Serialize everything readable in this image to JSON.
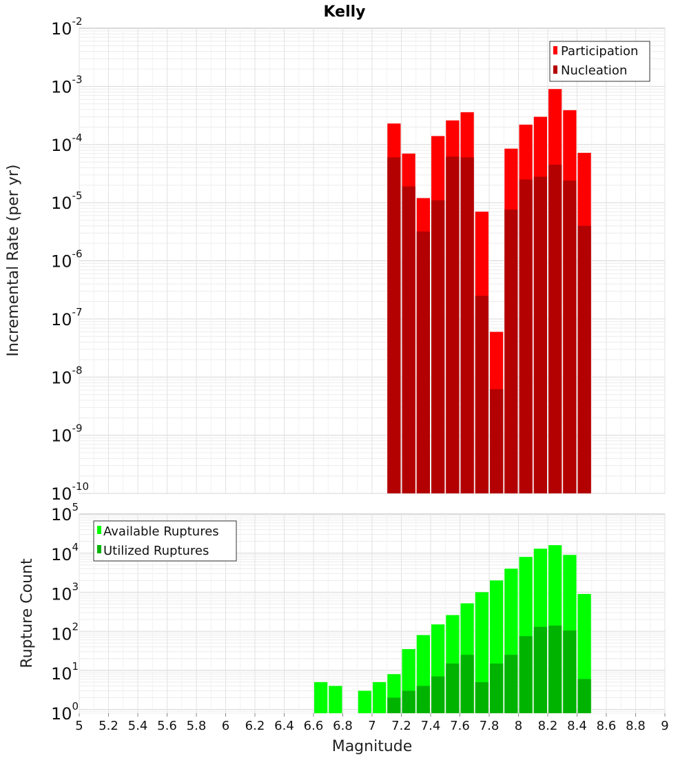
{
  "title": "Kelly",
  "xlabel": "Magnitude",
  "chart_data": [
    {
      "type": "bar",
      "ylabel": "Incremental Rate (per yr)",
      "yscale": "log",
      "ylim": [
        1e-10,
        0.01
      ],
      "xlim": [
        5,
        9
      ],
      "bin_width": 0.1,
      "legend_position": "top-right",
      "grid": true,
      "x": [
        7.15,
        7.25,
        7.35,
        7.45,
        7.55,
        7.65,
        7.75,
        7.85,
        7.95,
        8.05,
        8.15,
        8.25,
        8.35,
        8.45
      ],
      "series": [
        {
          "name": "Participation",
          "color": "#ff0000",
          "values": [
            0.00023,
            7e-05,
            1.2e-05,
            0.00014,
            0.00026,
            0.00036,
            7e-06,
            6e-08,
            8.5e-05,
            0.00022,
            0.0003,
            0.0009,
            0.00039,
            7.2e-05
          ]
        },
        {
          "name": "Nucleation",
          "color": "#b30000",
          "values": [
            6e-05,
            1.9e-05,
            3.2e-06,
            1.1e-05,
            6.2e-05,
            6e-05,
            2.5e-07,
            6.2e-09,
            7.6e-06,
            2.5e-05,
            2.8e-05,
            4.5e-05,
            2.4e-05,
            4e-06
          ]
        }
      ]
    },
    {
      "type": "bar",
      "ylabel": "Rupture Count",
      "yscale": "log",
      "ylim": [
        0.8,
        100000.0
      ],
      "xlim": [
        5,
        9
      ],
      "bin_width": 0.1,
      "legend_position": "top-left",
      "grid": true,
      "x": [
        6.65,
        6.75,
        6.95,
        7.05,
        7.15,
        7.25,
        7.35,
        7.45,
        7.55,
        7.65,
        7.75,
        7.85,
        7.95,
        8.05,
        8.15,
        8.25,
        8.35,
        8.45
      ],
      "series": [
        {
          "name": "Available Ruptures",
          "color": "#00ff00",
          "values": [
            5,
            4,
            3,
            5,
            8,
            35,
            80,
            150,
            260,
            520,
            1000,
            2000,
            4000,
            8000,
            13000,
            16000,
            9000,
            900
          ]
        },
        {
          "name": "Utilized Ruptures",
          "color": "#00b300",
          "values": [
            0,
            0,
            0,
            0,
            2,
            3,
            4,
            7,
            15,
            25,
            5,
            15,
            25,
            75,
            130,
            140,
            105,
            6
          ]
        }
      ]
    }
  ],
  "x_ticks": [
    "5",
    "5.2",
    "5.4",
    "5.6",
    "5.8",
    "6",
    "6.2",
    "6.4",
    "6.6",
    "6.8",
    "7",
    "7.2",
    "7.4",
    "7.6",
    "7.8",
    "8",
    "8.2",
    "8.4",
    "8.6",
    "8.8",
    "9"
  ],
  "top_y_ticks": [
    {
      "base": "10",
      "exp": "-2"
    },
    {
      "base": "10",
      "exp": "-3"
    },
    {
      "base": "10",
      "exp": "-4"
    },
    {
      "base": "10",
      "exp": "-5"
    },
    {
      "base": "10",
      "exp": "-6"
    },
    {
      "base": "10",
      "exp": "-7"
    },
    {
      "base": "10",
      "exp": "-8"
    },
    {
      "base": "10",
      "exp": "-9"
    },
    {
      "base": "10",
      "exp": "-10"
    }
  ],
  "bottom_y_ticks": [
    {
      "base": "10",
      "exp": "5"
    },
    {
      "base": "10",
      "exp": "4"
    },
    {
      "base": "10",
      "exp": "3"
    },
    {
      "base": "10",
      "exp": "2"
    },
    {
      "base": "10",
      "exp": "1"
    },
    {
      "base": "10",
      "exp": "0"
    }
  ]
}
